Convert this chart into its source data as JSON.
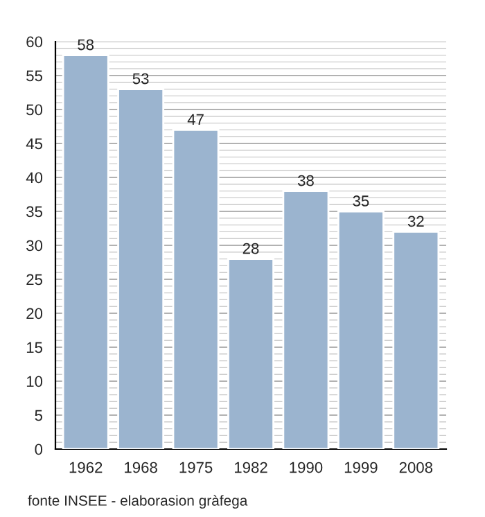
{
  "chart_data": {
    "type": "bar",
    "categories": [
      "1962",
      "1968",
      "1975",
      "1982",
      "1990",
      "1999",
      "2008"
    ],
    "values": [
      58,
      53,
      47,
      28,
      38,
      35,
      32
    ],
    "color": "#9bb4cf",
    "ylim": [
      0,
      60
    ],
    "yticks": [
      0,
      5,
      10,
      15,
      20,
      25,
      30,
      35,
      40,
      45,
      50,
      55,
      60
    ],
    "grid": "y",
    "data_labels": true,
    "annotations": [
      "fonte INSEE - elaborasion gràfega"
    ]
  }
}
